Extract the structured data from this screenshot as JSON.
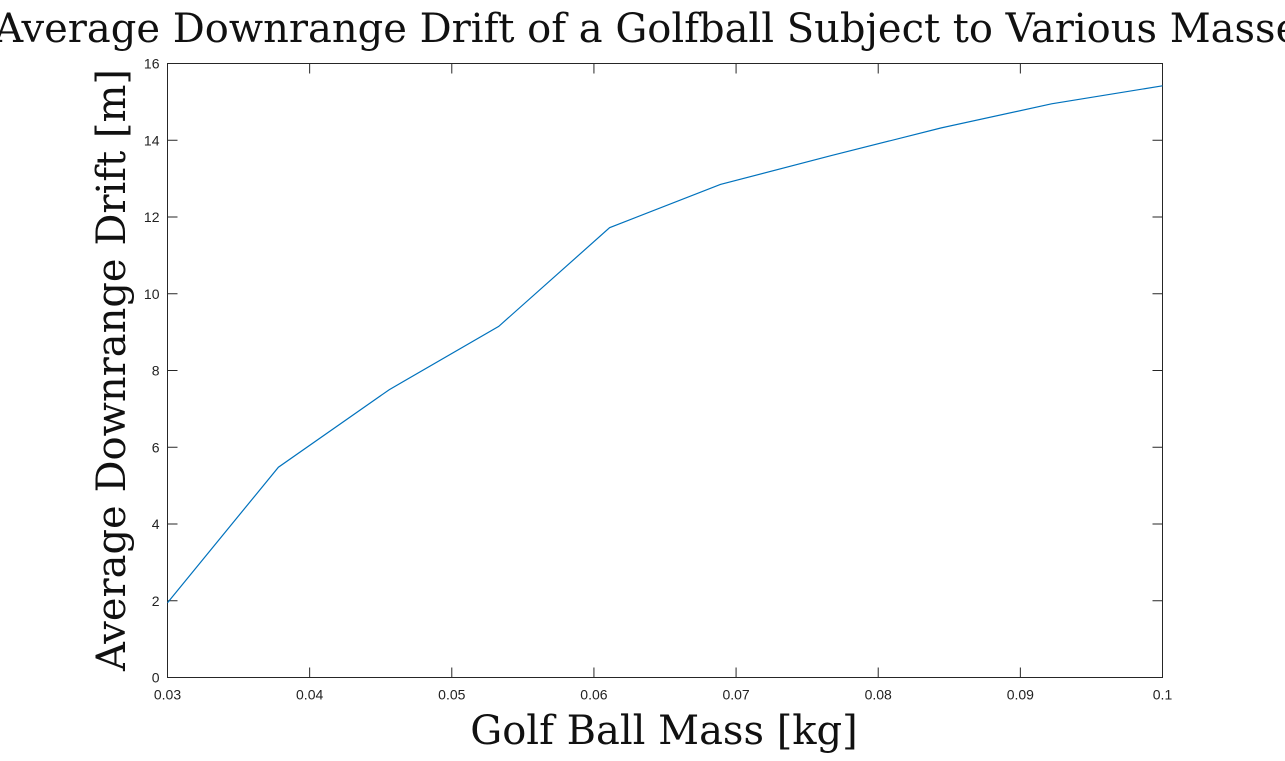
{
  "chart_data": {
    "type": "line",
    "title": "Average Downrange Drift of a Golfball Subject to Various Masses",
    "xlabel": "Golf Ball Mass [kg]",
    "ylabel": "Average Downrange Drift [m]",
    "xlim": [
      0.03,
      0.1
    ],
    "ylim": [
      0,
      16
    ],
    "xticks": [
      "0.03",
      "0.04",
      "0.05",
      "0.06",
      "0.07",
      "0.08",
      "0.09",
      "0.1"
    ],
    "yticks": [
      "0",
      "2",
      "4",
      "6",
      "8",
      "10",
      "12",
      "14",
      "16"
    ],
    "grid": false,
    "series": [
      {
        "color": "#0072BD",
        "x": [
          0.03,
          0.0378,
          0.0456,
          0.0533,
          0.0611,
          0.0689,
          0.0767,
          0.0844,
          0.0922,
          0.1
        ],
        "y": [
          1.95,
          5.48,
          7.5,
          9.15,
          11.72,
          12.85,
          13.6,
          14.32,
          14.95,
          15.42
        ]
      }
    ]
  }
}
